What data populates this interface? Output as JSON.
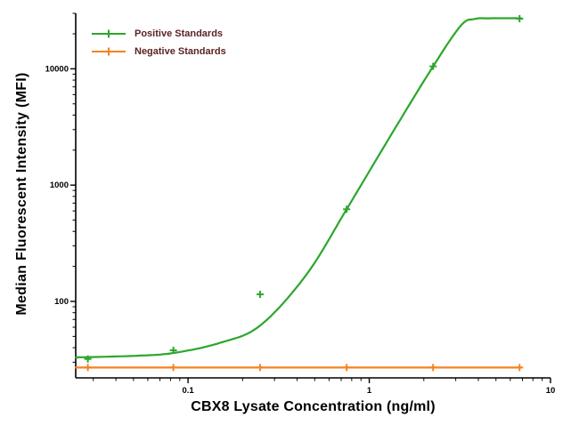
{
  "chart_data": {
    "type": "scatter",
    "title": "",
    "xlabel": "CBX8 Lysate Concentration (ng/ml)",
    "ylabel": "Median  Fluorescent Intensity  (MFI)",
    "x_scale": "log",
    "y_scale": "log",
    "xlim": [
      0.024,
      10
    ],
    "ylim": [
      22,
      30000
    ],
    "x_ticks": [
      {
        "v": 0.1,
        "label": "0.1"
      },
      {
        "v": 1,
        "label": "1"
      },
      {
        "v": 10,
        "label": "10"
      }
    ],
    "y_ticks": [
      {
        "v": 100,
        "label": "100"
      },
      {
        "v": 1000,
        "label": "1000"
      },
      {
        "v": 10000,
        "label": "10000"
      }
    ],
    "grid": false,
    "minor_ticks": true,
    "legend_position": "top-left",
    "colors": {
      "axis": "#000000",
      "background": "#ffffff",
      "legend_text": "#5b2323",
      "positive": "#2ca62c",
      "negative": "#f5821f"
    },
    "series": [
      {
        "name": "Positive Standards",
        "color": "#2ca62c",
        "marker": "plus",
        "points": {
          "x": [
            0.028,
            0.083,
            0.25,
            0.75,
            2.25,
            6.75
          ],
          "y": [
            32,
            38,
            115,
            620,
            10500,
            27000
          ]
        },
        "fit_curve": {
          "x": [
            0.024,
            0.05,
            0.083,
            0.15,
            0.25,
            0.45,
            0.75,
            1.3,
            2.25,
            3.2,
            3.8,
            4.6,
            6.9
          ],
          "y": [
            33,
            34,
            36,
            44,
            62,
            170,
            620,
            2600,
            10500,
            23500,
            26800,
            27200,
            27200
          ]
        }
      },
      {
        "name": "Negative Standards",
        "color": "#f5821f",
        "marker": "plus",
        "points": {
          "x": [
            0.028,
            0.083,
            0.25,
            0.75,
            2.25,
            6.75
          ],
          "y": [
            27,
            27,
            27,
            27,
            27,
            27
          ]
        },
        "fit_curve": {
          "x": [
            0.024,
            6.9
          ],
          "y": [
            27,
            27
          ]
        }
      }
    ]
  }
}
